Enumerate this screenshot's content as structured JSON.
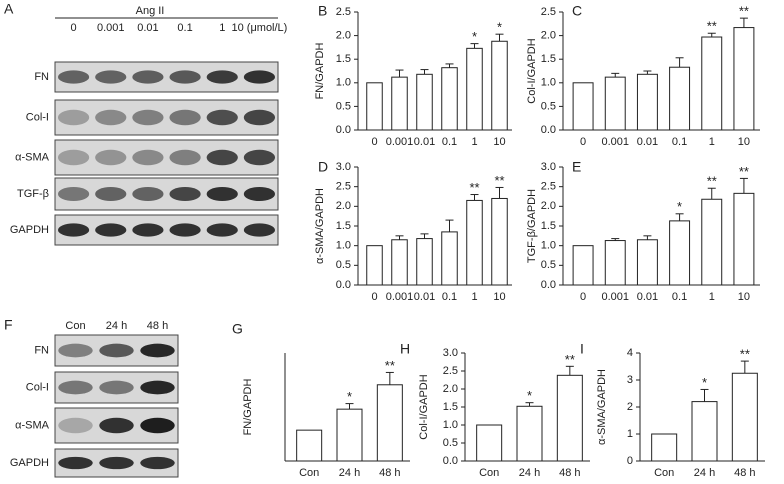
{
  "panels": [
    "A",
    "B",
    "C",
    "D",
    "E",
    "F",
    "G",
    "H",
    "I"
  ],
  "blot_a": {
    "treatment": "Ang II",
    "lanes": [
      "0",
      "0.001",
      "0.01",
      "0.1",
      "1",
      "10 (μmol/L)"
    ],
    "rows": [
      "FN",
      "Col-I",
      "α-SMA",
      "TGF-β",
      "GAPDH"
    ]
  },
  "blot_f": {
    "lanes": [
      "Con",
      "24 h",
      "48 h"
    ],
    "rows": [
      "FN",
      "Col-I",
      "α-SMA",
      "GAPDH"
    ]
  },
  "chart_data": [
    {
      "type": "bar",
      "y_label": "FN/GAPDH",
      "categories": [
        "0",
        "0.001",
        "0.01",
        "0.1",
        "1",
        "10"
      ],
      "values": [
        1.0,
        1.12,
        1.18,
        1.32,
        1.73,
        1.88
      ],
      "errors": [
        null,
        0.15,
        0.1,
        0.08,
        0.1,
        0.15
      ],
      "annotations": [
        null,
        null,
        null,
        null,
        "*",
        "*"
      ],
      "ylim": [
        0,
        2.5
      ],
      "yticks": [
        {
          "value": 0,
          "label": "0.0"
        },
        0.5,
        {
          "value": 1,
          "label": "1.0"
        },
        1.5,
        {
          "value": 2,
          "label": "2.0"
        },
        2.5
      ]
    },
    {
      "type": "bar",
      "y_label": "Col-I/GAPDH",
      "categories": [
        "0",
        "0.001",
        "0.01",
        "0.1",
        "1",
        "10"
      ],
      "values": [
        1.0,
        1.12,
        1.18,
        1.33,
        1.97,
        2.17
      ],
      "errors": [
        null,
        0.08,
        0.07,
        0.2,
        0.08,
        0.2
      ],
      "annotations": [
        null,
        null,
        null,
        null,
        "**",
        "**"
      ],
      "ylim": [
        0,
        2.5
      ],
      "yticks": [
        {
          "value": 0,
          "label": "0.0"
        },
        0.5,
        {
          "value": 1,
          "label": "1.0"
        },
        1.5,
        {
          "value": 2,
          "label": "2.0"
        },
        2.5
      ]
    },
    {
      "type": "bar",
      "y_label": "α-SMA/GAPDH",
      "categories": [
        "0",
        "0.001",
        "0.01",
        "0.1",
        "1",
        "10"
      ],
      "values": [
        1.0,
        1.15,
        1.18,
        1.35,
        2.15,
        2.2
      ],
      "errors": [
        null,
        0.1,
        0.12,
        0.3,
        0.15,
        0.28
      ],
      "annotations": [
        null,
        null,
        null,
        null,
        "**",
        "**"
      ],
      "ylim": [
        0,
        3
      ],
      "yticks": [
        {
          "value": 0,
          "label": "0.0"
        },
        0.5,
        {
          "value": 1,
          "label": "1.0"
        },
        1.5,
        {
          "value": 2,
          "label": "2.0"
        },
        2.5,
        {
          "value": 3,
          "label": "3.0"
        }
      ]
    },
    {
      "type": "bar",
      "y_label": "TGF-β/GAPDH",
      "categories": [
        "0",
        "0.001",
        "0.01",
        "0.1",
        "1",
        "10"
      ],
      "values": [
        1.0,
        1.13,
        1.15,
        1.63,
        2.18,
        2.33
      ],
      "errors": [
        null,
        0.05,
        0.1,
        0.18,
        0.28,
        0.38
      ],
      "annotations": [
        null,
        null,
        null,
        "*",
        "**",
        "**"
      ],
      "ylim": [
        0,
        3
      ],
      "yticks": [
        {
          "value": 0,
          "label": "0.0"
        },
        0.5,
        {
          "value": 1,
          "label": "1.0"
        },
        1.5,
        {
          "value": 2,
          "label": "2.0"
        },
        2.5,
        {
          "value": 3,
          "label": "3.0"
        }
      ]
    },
    {
      "type": "bar",
      "y_label": "FN/GAPDH",
      "categories": [
        "Con",
        "24 h",
        "48 h"
      ],
      "values": [
        1.0,
        1.68,
        2.47
      ],
      "errors": [
        null,
        0.18,
        0.4
      ],
      "annotations": [
        null,
        "*",
        "**"
      ],
      "ylim": [
        0,
        3.5
      ]
    },
    {
      "type": "bar",
      "y_label": "Col-I/GAPDH",
      "categories": [
        "Con",
        "24 h",
        "48 h"
      ],
      "values": [
        1.0,
        1.52,
        2.38
      ],
      "errors": [
        null,
        0.1,
        0.25
      ],
      "annotations": [
        null,
        "*",
        "**"
      ],
      "ylim": [
        0,
        3
      ],
      "yticks": [
        {
          "value": 0,
          "label": "0.0"
        },
        0.5,
        {
          "value": 1,
          "label": "1.0"
        },
        1.5,
        {
          "value": 2,
          "label": "2.0"
        },
        2.5,
        {
          "value": 3,
          "label": "3.0"
        }
      ]
    },
    {
      "type": "bar",
      "y_label": "α-SMA/GAPDH",
      "categories": [
        "Con",
        "24 h",
        "48 h"
      ],
      "values": [
        1.0,
        2.2,
        3.25
      ],
      "errors": [
        null,
        0.45,
        0.45
      ],
      "annotations": [
        null,
        "*",
        "**"
      ],
      "ylim": [
        0,
        4
      ],
      "yticks": [
        0,
        1,
        2,
        3,
        4
      ]
    }
  ]
}
